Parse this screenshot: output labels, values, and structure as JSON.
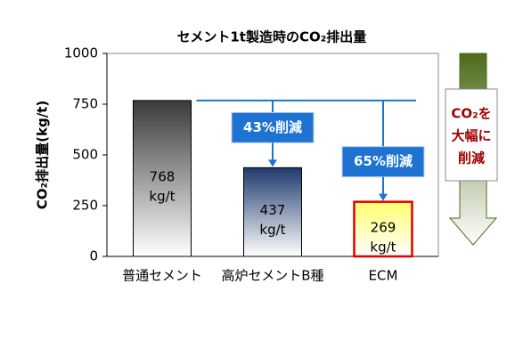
{
  "chart_data": {
    "type": "bar",
    "title": "セメント1t製造時のCO₂排出量",
    "y_label": "CO₂排出量(kg/t)",
    "categories": [
      "普通セメント",
      "高炉セメントB種",
      "ECM"
    ],
    "values": [
      768,
      437,
      269
    ],
    "value_labels": [
      "768\nkg/t",
      "437\nkg/t",
      "269\nkg/t"
    ],
    "colors": [
      "#3a3a3a",
      "#1f3a6e",
      "#ffff70"
    ],
    "ylim": [
      0,
      1000
    ],
    "yticks": [
      0,
      250,
      500,
      750,
      1000
    ],
    "annotations": [
      "43%削減",
      "65%削減"
    ],
    "side_note": [
      "CO₂を",
      "大幅に",
      "削減"
    ]
  }
}
